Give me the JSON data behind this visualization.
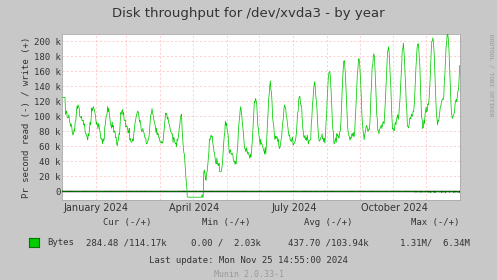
{
  "title": "Disk throughput for /dev/xvda3 - by year",
  "ylabel": "Pr second read (-) / write (+)",
  "xlabel_ticks": [
    "January 2024",
    "April 2024",
    "July 2024",
    "October 2024"
  ],
  "xtick_pos": [
    31,
    121,
    213,
    305
  ],
  "ylim": [
    -12000,
    210000
  ],
  "yticks": [
    0,
    20000,
    40000,
    60000,
    80000,
    100000,
    120000,
    140000,
    160000,
    180000,
    200000
  ],
  "ytick_labels": [
    "0",
    "20 k",
    "40 k",
    "60 k",
    "80 k",
    "100 k",
    "120 k",
    "140 k",
    "160 k",
    "180 k",
    "200 k"
  ],
  "bg_color": "#c8c8c8",
  "plot_bg_color": "#ffffff",
  "line_color": "#00cc00",
  "zero_line_color": "#000000",
  "legend_label": "Bytes",
  "legend_color": "#00cc00",
  "footer_cur": "Cur (-/+)",
  "footer_min": "Min (-/+)",
  "footer_avg": "Avg (-/+)",
  "footer_max": "Max (-/+)",
  "footer_cur_val": "284.48 /114.17k",
  "footer_min_val": "0.00 /  2.03k",
  "footer_avg_val": "437.70 /103.94k",
  "footer_max_val": "1.31M/  6.34M",
  "footer_lastupdate": "Last update: Mon Nov 25 14:55:00 2024",
  "footer_munin": "Munin 2.0.33-1",
  "rrdtool_label": "RRDTOOL / TOBI OETIKER",
  "watermark_color": "#999999",
  "axis_color": "#aaaaaa",
  "title_color": "#333333",
  "text_color": "#333333",
  "grid_color": "#ffbbbb",
  "vgrid_color": "#ffbbbb",
  "num_points": 700
}
